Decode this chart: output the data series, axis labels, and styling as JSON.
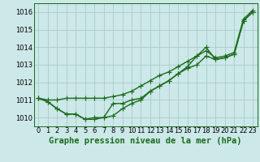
{
  "title": "Graphe pression niveau de la mer (hPa)",
  "x_labels": [
    "0",
    "1",
    "2",
    "3",
    "4",
    "5",
    "6",
    "7",
    "8",
    "9",
    "10",
    "11",
    "12",
    "13",
    "14",
    "15",
    "16",
    "17",
    "18",
    "19",
    "20",
    "21",
    "22",
    "23"
  ],
  "xlim": [
    -0.5,
    23.5
  ],
  "ylim": [
    1009.5,
    1016.5
  ],
  "yticks": [
    1010,
    1011,
    1012,
    1013,
    1014,
    1015,
    1016
  ],
  "background_color": "#cce8e8",
  "grid_color": "#aacccc",
  "line_color": "#1a6b1a",
  "series1": [
    1011.1,
    1010.9,
    1010.5,
    1010.2,
    1010.2,
    1009.9,
    1009.9,
    1010.0,
    1010.8,
    1010.8,
    1011.0,
    1011.1,
    1011.5,
    1011.8,
    1012.1,
    1012.5,
    1012.9,
    1013.5,
    1014.0,
    1013.3,
    1013.4,
    1013.6,
    1015.5,
    1016.0
  ],
  "series2": [
    1011.1,
    1010.9,
    1010.5,
    1010.2,
    1010.2,
    1009.9,
    1010.0,
    1010.0,
    1010.1,
    1010.5,
    1010.8,
    1011.0,
    1011.5,
    1011.8,
    1012.1,
    1012.5,
    1012.8,
    1013.0,
    1013.5,
    1013.3,
    1013.4,
    1013.6,
    1015.5,
    1016.0
  ],
  "series3": [
    1011.1,
    1011.0,
    1011.0,
    1011.1,
    1011.1,
    1011.1,
    1011.1,
    1011.1,
    1011.2,
    1011.3,
    1011.5,
    1011.8,
    1012.1,
    1012.4,
    1012.6,
    1012.9,
    1013.2,
    1013.5,
    1013.8,
    1013.4,
    1013.5,
    1013.7,
    1015.6,
    1016.1
  ],
  "marker": "+",
  "marker_size": 4,
  "linewidth": 1.0,
  "title_fontsize": 7.5,
  "tick_fontsize": 6.0,
  "fig_width": 3.2,
  "fig_height": 2.0,
  "dpi": 100
}
